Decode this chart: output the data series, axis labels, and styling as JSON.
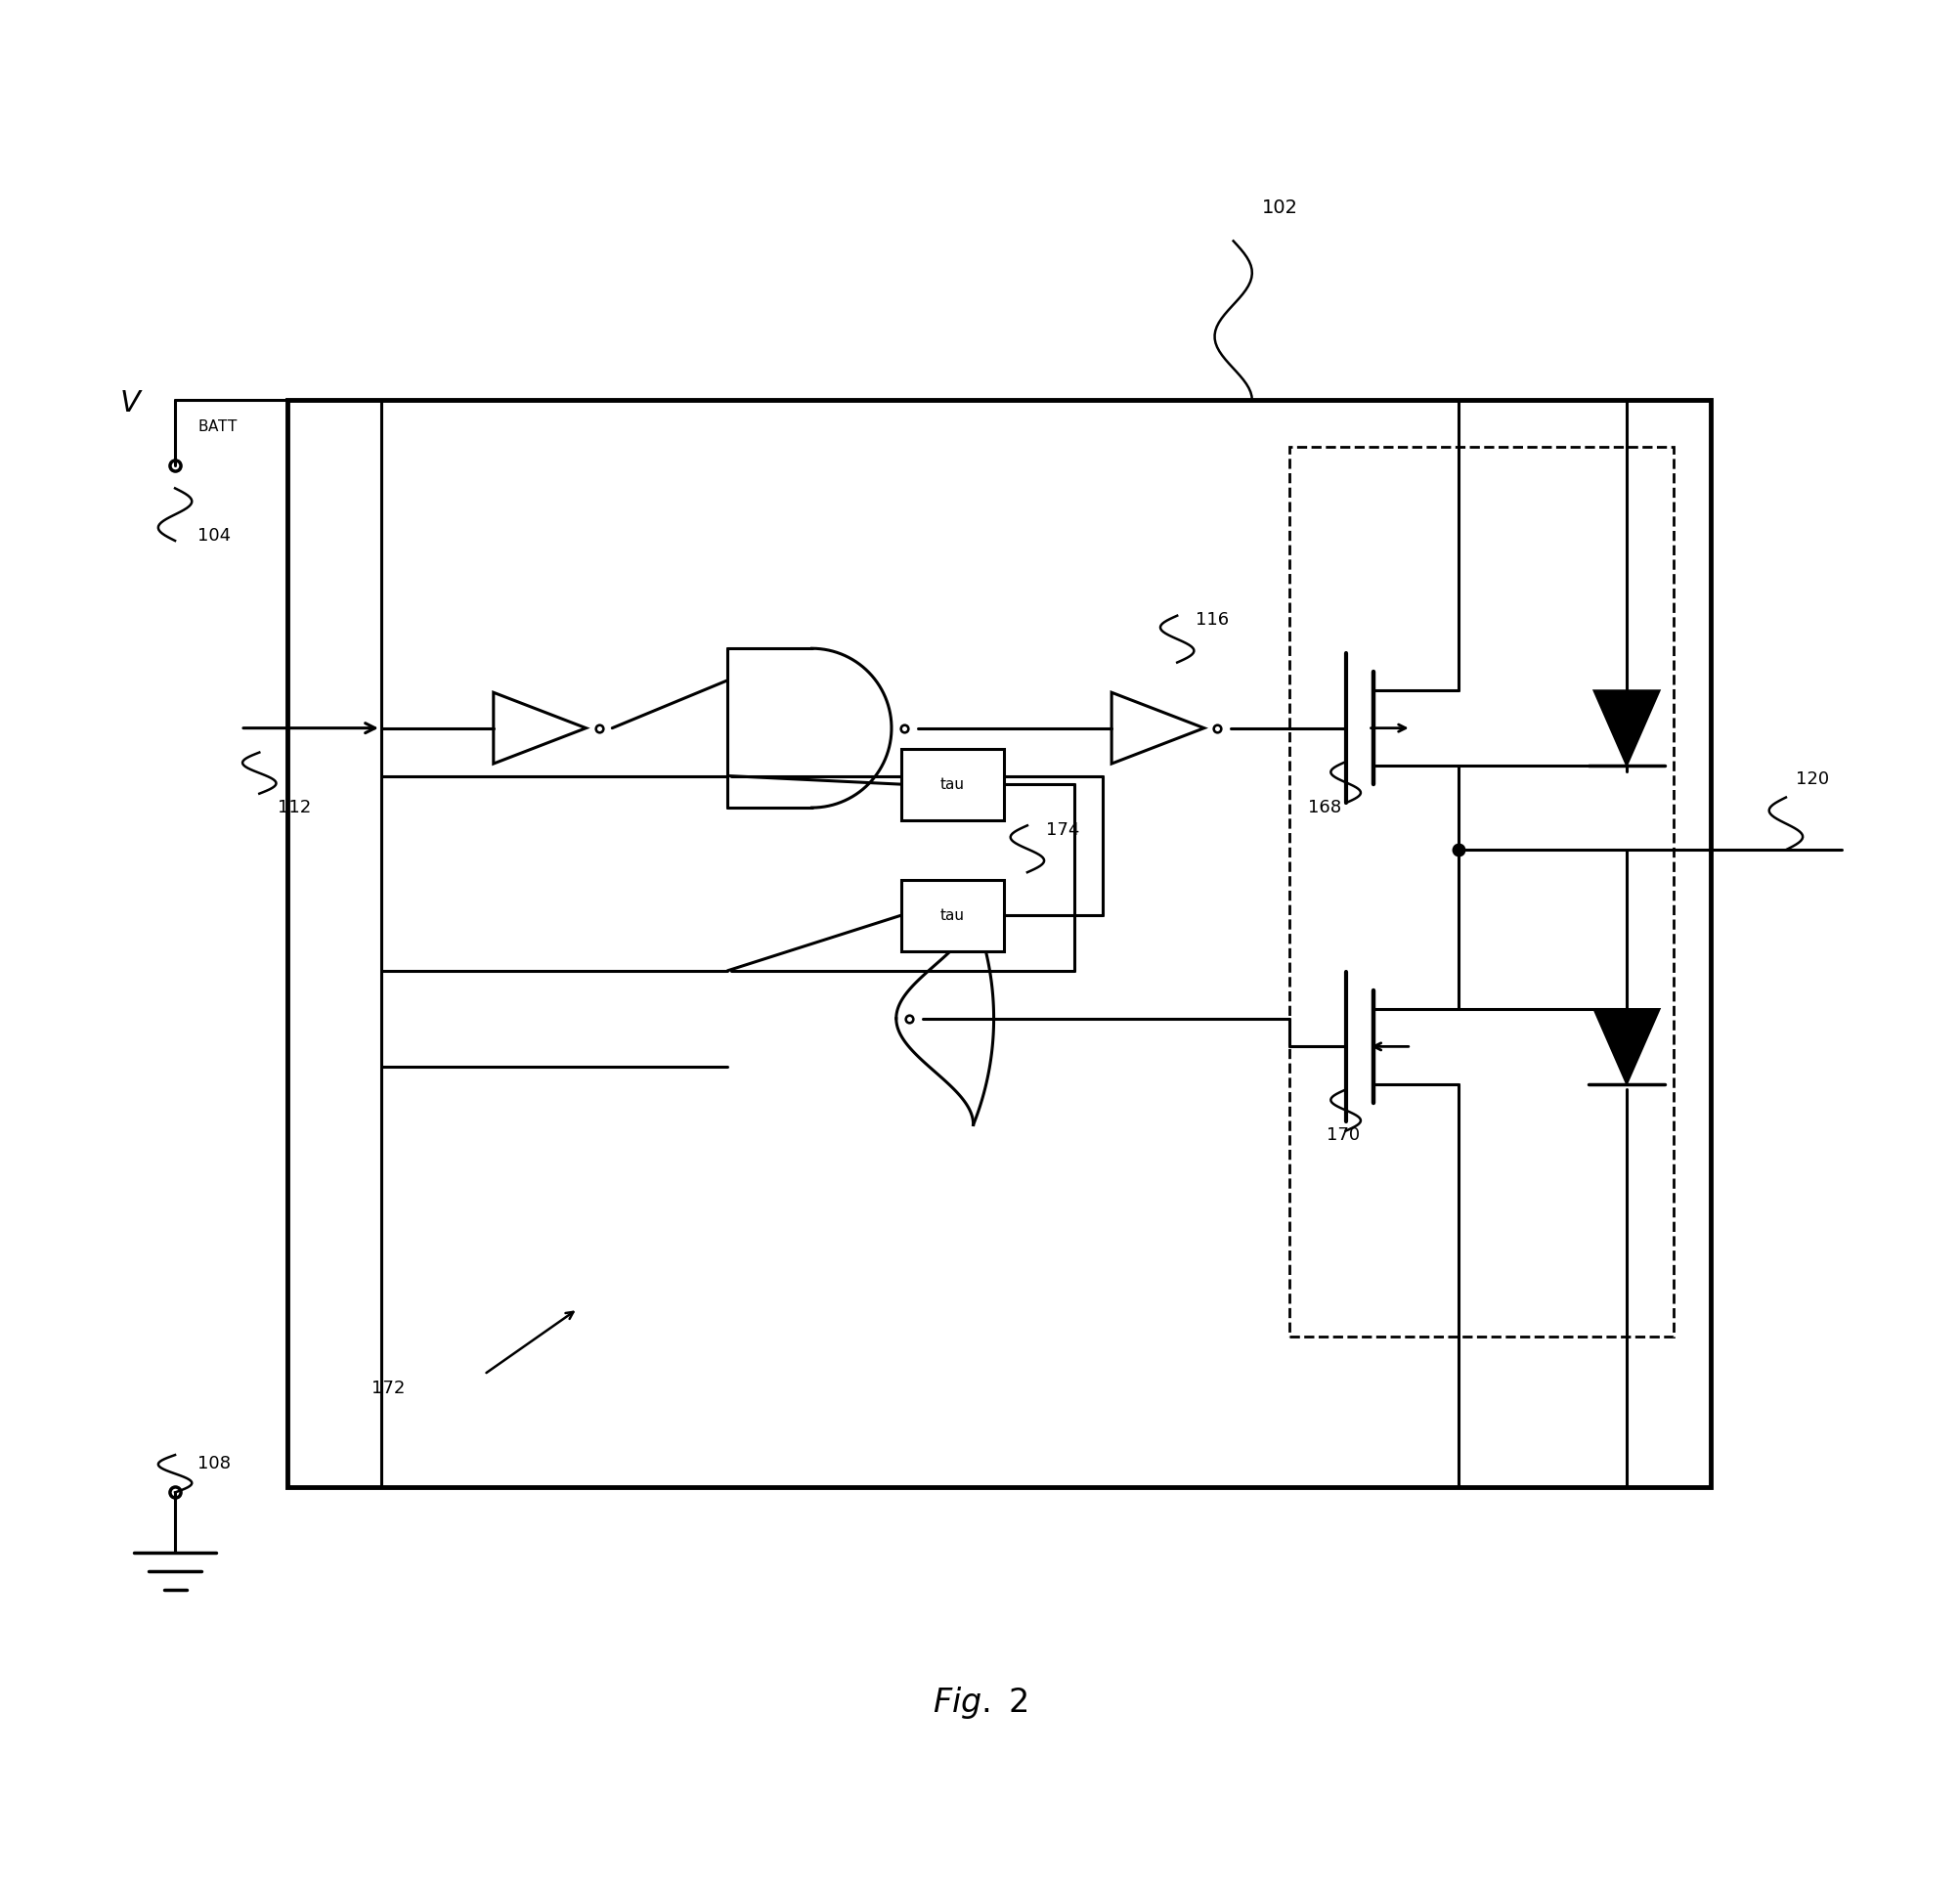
{
  "title": "Fig. 2",
  "background_color": "#ffffff",
  "line_color": "#000000",
  "fig_width": 20.06,
  "fig_height": 19.3,
  "labels": {
    "vbatt": "V",
    "vbatt_sub": "BATT",
    "n102": "102",
    "n104": "104",
    "n108": "108",
    "n112": "112",
    "n116": "116",
    "n120": "120",
    "n168": "168",
    "n170": "170",
    "n172": "172",
    "n174": "174",
    "tau": "tau",
    "fig_label": "Fig. 2"
  }
}
